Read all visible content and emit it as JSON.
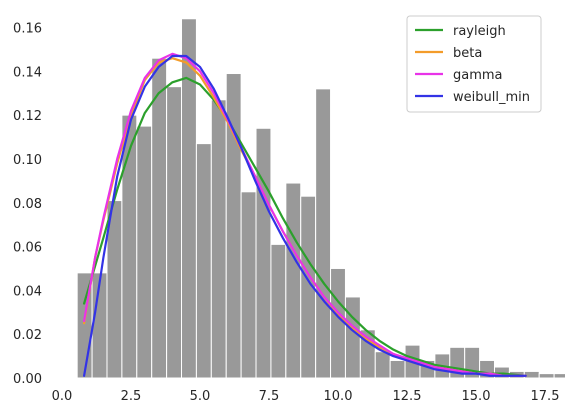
{
  "chart_data": {
    "type": "bar",
    "title": "",
    "xlabel": "",
    "ylabel": "",
    "xlim": [
      0,
      17.5
    ],
    "ylim": [
      0,
      0.168
    ],
    "grid": false,
    "legend_position": "top-right",
    "xticks": [
      0.0,
      2.5,
      5.0,
      7.5,
      10.0,
      12.5,
      15.0,
      17.5
    ],
    "xtick_labels": [
      "0.0",
      "2.5",
      "5.0",
      "7.5",
      "10.0",
      "12.5",
      "15.0",
      "17.5"
    ],
    "yticks": [
      0.0,
      0.02,
      0.04,
      0.06,
      0.08,
      0.1,
      0.12,
      0.14,
      0.16
    ],
    "ytick_labels": [
      "0.00",
      "0.02",
      "0.04",
      "0.06",
      "0.08",
      "0.10",
      "0.12",
      "0.14",
      "0.16"
    ],
    "histogram": {
      "color": "#999999",
      "bin_start": 0.55,
      "bin_width": 0.54,
      "values": [
        0.048,
        0.048,
        0.081,
        0.12,
        0.115,
        0.146,
        0.133,
        0.164,
        0.107,
        0.127,
        0.139,
        0.085,
        0.114,
        0.061,
        0.089,
        0.083,
        0.132,
        0.05,
        0.037,
        0.022,
        0.012,
        0.008,
        0.015,
        0.008,
        0.011,
        0.014,
        0.014,
        0.008,
        0.005,
        0.003,
        0.003,
        0.002,
        0.002
      ]
    },
    "series": [
      {
        "name": "rayleigh",
        "color": "#2ca02c",
        "x": [
          0.8,
          1.5,
          2.0,
          2.5,
          3.0,
          3.5,
          4.0,
          4.5,
          5.0,
          5.5,
          6.0,
          6.5,
          7.0,
          7.5,
          8.0,
          8.5,
          9.0,
          9.5,
          10.0,
          10.5,
          11.0,
          11.5,
          12.0,
          12.5,
          13.0,
          13.5,
          14.0,
          14.5,
          15.0,
          15.5,
          16.0,
          16.8
        ],
        "y": [
          0.034,
          0.064,
          0.086,
          0.106,
          0.121,
          0.13,
          0.135,
          0.137,
          0.134,
          0.127,
          0.118,
          0.107,
          0.096,
          0.085,
          0.073,
          0.062,
          0.052,
          0.043,
          0.035,
          0.028,
          0.022,
          0.017,
          0.013,
          0.01,
          0.008,
          0.006,
          0.005,
          0.004,
          0.003,
          0.002,
          0.002,
          0.001
        ]
      },
      {
        "name": "beta",
        "color": "#f39c2a",
        "x": [
          0.8,
          1.2,
          1.5,
          2.0,
          2.5,
          3.0,
          3.5,
          4.0,
          4.5,
          5.0,
          5.5,
          6.0,
          6.5,
          7.0,
          7.5,
          8.0,
          8.5,
          9.0,
          9.5,
          10.0,
          10.5,
          11.0,
          11.5,
          12.0,
          12.5,
          13.0,
          13.5,
          14.0,
          14.5,
          15.0,
          15.5,
          16.0,
          16.8
        ],
        "y": [
          0.025,
          0.055,
          0.072,
          0.098,
          0.12,
          0.136,
          0.144,
          0.146,
          0.144,
          0.138,
          0.128,
          0.117,
          0.104,
          0.092,
          0.079,
          0.067,
          0.056,
          0.046,
          0.037,
          0.029,
          0.023,
          0.018,
          0.014,
          0.011,
          0.008,
          0.006,
          0.005,
          0.004,
          0.003,
          0.002,
          0.002,
          0.001,
          0.001
        ]
      },
      {
        "name": "gamma",
        "color": "#e833e8",
        "x": [
          0.8,
          1.2,
          1.5,
          2.0,
          2.5,
          3.0,
          3.5,
          4.0,
          4.5,
          5.0,
          5.5,
          6.0,
          6.5,
          7.0,
          7.5,
          8.0,
          8.5,
          9.0,
          9.5,
          10.0,
          10.5,
          11.0,
          11.5,
          12.0,
          12.5,
          13.0,
          13.5,
          14.0,
          14.5,
          15.0,
          15.5,
          16.0,
          16.8
        ],
        "y": [
          0.026,
          0.055,
          0.073,
          0.1,
          0.122,
          0.137,
          0.145,
          0.148,
          0.146,
          0.14,
          0.13,
          0.118,
          0.105,
          0.092,
          0.079,
          0.067,
          0.056,
          0.046,
          0.037,
          0.03,
          0.024,
          0.019,
          0.015,
          0.011,
          0.009,
          0.007,
          0.005,
          0.004,
          0.003,
          0.002,
          0.002,
          0.001,
          0.001
        ]
      },
      {
        "name": "weibull_min",
        "color": "#3333e6",
        "x": [
          0.8,
          1.2,
          1.5,
          2.0,
          2.5,
          3.0,
          3.5,
          4.0,
          4.5,
          5.0,
          5.5,
          6.0,
          6.5,
          7.0,
          7.5,
          8.0,
          8.5,
          9.0,
          9.5,
          10.0,
          10.5,
          11.0,
          11.5,
          12.0,
          12.5,
          13.0,
          13.5,
          14.0,
          14.5,
          15.0,
          15.5,
          16.0,
          16.8
        ],
        "y": [
          0.001,
          0.03,
          0.055,
          0.092,
          0.118,
          0.133,
          0.142,
          0.147,
          0.147,
          0.142,
          0.132,
          0.119,
          0.105,
          0.09,
          0.076,
          0.064,
          0.053,
          0.043,
          0.035,
          0.028,
          0.022,
          0.017,
          0.013,
          0.01,
          0.008,
          0.006,
          0.004,
          0.003,
          0.002,
          0.002,
          0.001,
          0.001,
          0.001
        ]
      }
    ]
  }
}
